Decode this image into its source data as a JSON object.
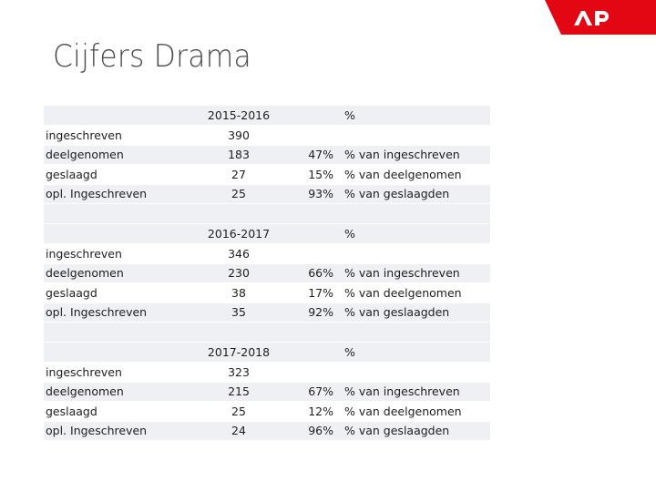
{
  "title": "Cijfers Drama",
  "logo": {
    "text": "AP",
    "color": "#e30613"
  },
  "sections": [
    {
      "year": "2015-2016",
      "pct_header": "%",
      "rows": [
        {
          "label": "ingeschreven",
          "count": "390",
          "pct": "",
          "desc": ""
        },
        {
          "label": "deelgenomen",
          "count": "183",
          "pct": "47%",
          "desc": "% van ingeschreven"
        },
        {
          "label": "geslaagd",
          "count": "27",
          "pct": "15%",
          "desc": "% van deelgenomen"
        },
        {
          "label": "opl. Ingeschreven",
          "count": "25",
          "pct": "93%",
          "desc": "% van geslaagden"
        }
      ]
    },
    {
      "year": "2016-2017",
      "pct_header": "%",
      "rows": [
        {
          "label": "ingeschreven",
          "count": "346",
          "pct": "",
          "desc": ""
        },
        {
          "label": "deelgenomen",
          "count": "230",
          "pct": "66%",
          "desc": "% van ingeschreven"
        },
        {
          "label": "geslaagd",
          "count": "38",
          "pct": "17%",
          "desc": "% van deelgenomen"
        },
        {
          "label": "opl. Ingeschreven",
          "count": "35",
          "pct": "92%",
          "desc": "% van geslaagden"
        }
      ]
    },
    {
      "year": "2017-2018",
      "pct_header": "%",
      "rows": [
        {
          "label": "ingeschreven",
          "count": "323",
          "pct": "",
          "desc": ""
        },
        {
          "label": "deelgenomen",
          "count": "215",
          "pct": "67%",
          "desc": "% van ingeschreven"
        },
        {
          "label": "geslaagd",
          "count": "25",
          "pct": "12%",
          "desc": "% van deelgenomen"
        },
        {
          "label": "opl. Ingeschreven",
          "count": "24",
          "pct": "96%",
          "desc": "% van geslaagden"
        }
      ]
    }
  ]
}
